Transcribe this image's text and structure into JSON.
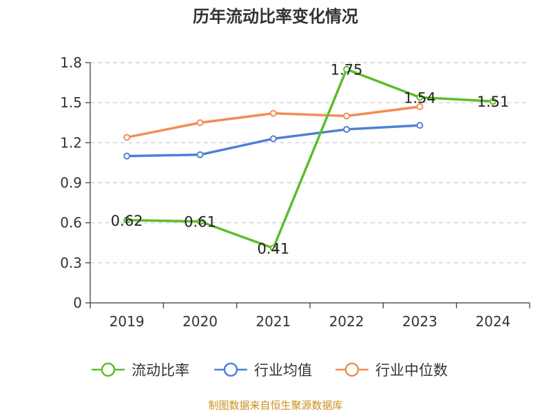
{
  "chart_data": {
    "type": "line",
    "title": "历年流动比率变化情况",
    "categories": [
      "2019",
      "2020",
      "2021",
      "2022",
      "2023",
      "2024"
    ],
    "ylim": [
      0,
      1.8
    ],
    "yticks": [
      "0",
      "0.3",
      "0.6",
      "0.9",
      "1.2",
      "1.5",
      "1.8"
    ],
    "ytick_values": [
      0,
      0.3,
      0.6,
      0.9,
      1.2,
      1.5,
      1.8
    ],
    "grid": true,
    "legend_position": "bottom",
    "series": [
      {
        "name": "流动比率",
        "color": "#5cbd2a",
        "values": [
          0.62,
          0.61,
          0.41,
          1.75,
          1.54,
          1.51
        ],
        "labels": [
          "0.62",
          "0.61",
          "0.41",
          "1.75",
          "1.54",
          "1.51"
        ]
      },
      {
        "name": "行业均值",
        "color": "#4e7fd6",
        "values": [
          1.1,
          1.11,
          1.23,
          1.3,
          1.33,
          null
        ]
      },
      {
        "name": "行业中位数",
        "color": "#f28c56",
        "values": [
          1.24,
          1.35,
          1.42,
          1.4,
          1.47,
          null
        ]
      }
    ]
  },
  "source": "制图数据来自恒生聚源数据库"
}
